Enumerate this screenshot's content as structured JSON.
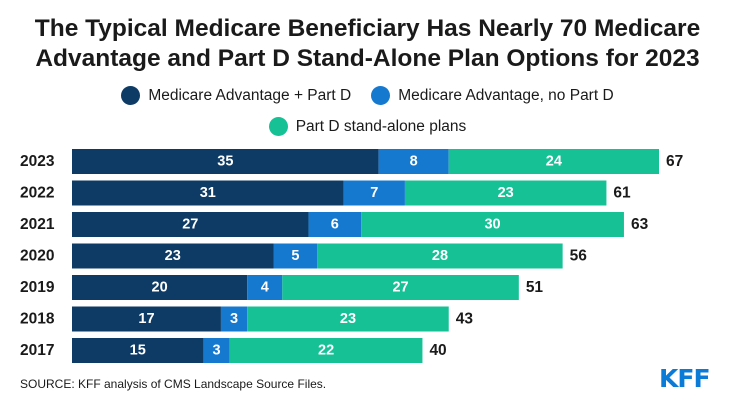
{
  "title_line1": "The Typical Medicare Beneficiary Has Nearly 70 Medicare",
  "title_line2": "Advantage and Part D Stand-Alone Plan Options for 2023",
  "source": "SOURCE: KFF analysis of CMS Landscape Source Files.",
  "logo": "KFF",
  "colors": {
    "ma_part_d": "#0e3b66",
    "ma_no_part_d": "#1679d0",
    "part_d_standalone": "#17c196"
  },
  "chart_data": {
    "type": "bar",
    "orientation": "horizontal",
    "stacked": true,
    "categories": [
      "2023",
      "2022",
      "2021",
      "2020",
      "2019",
      "2018",
      "2017"
    ],
    "series": [
      {
        "name": "Medicare Advantage + Part D",
        "values": [
          35,
          31,
          27,
          23,
          20,
          17,
          15
        ]
      },
      {
        "name": "Medicare Advantage, no Part D",
        "values": [
          8,
          7,
          6,
          5,
          4,
          3,
          3
        ]
      },
      {
        "name": "Part D stand-alone plans",
        "values": [
          24,
          23,
          30,
          28,
          27,
          23,
          22
        ]
      }
    ],
    "totals": [
      67,
      61,
      63,
      56,
      51,
      43,
      40
    ],
    "xlim": [
      0,
      67
    ],
    "grid": false,
    "legend_position": "top"
  }
}
